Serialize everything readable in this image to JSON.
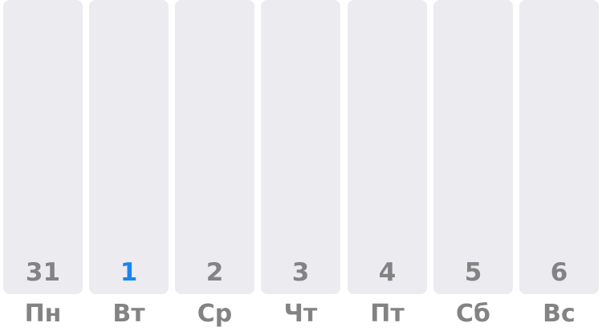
{
  "colors": {
    "bar_background": "#ecebf0",
    "text_muted": "#838383",
    "today_accent": "#1a84f5"
  },
  "days": [
    {
      "number": "31",
      "weekday": "Пн",
      "is_today": false
    },
    {
      "number": "1",
      "weekday": "Вт",
      "is_today": true
    },
    {
      "number": "2",
      "weekday": "Ср",
      "is_today": false
    },
    {
      "number": "3",
      "weekday": "Чт",
      "is_today": false
    },
    {
      "number": "4",
      "weekday": "Пт",
      "is_today": false
    },
    {
      "number": "5",
      "weekday": "Сб",
      "is_today": false
    },
    {
      "number": "6",
      "weekday": "Вс",
      "is_today": false
    }
  ]
}
